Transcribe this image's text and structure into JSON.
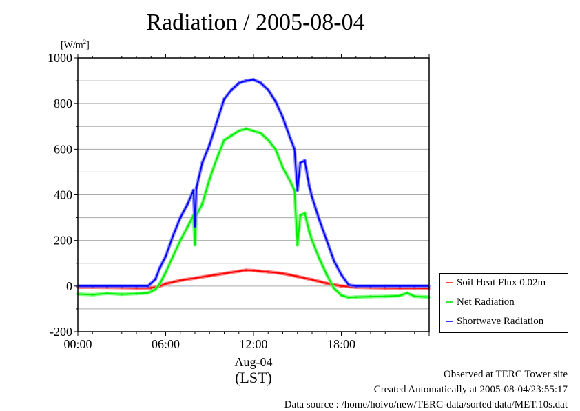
{
  "chart_data": {
    "type": "line",
    "title": "Radiation / 2005-08-04",
    "ylabel": "[W/m2]",
    "ylabel_unit_base": "[W/m",
    "ylabel_unit_exp": "2",
    "ylabel_unit_end": "]",
    "xlabel_date": "Aug-04",
    "xlabel_tz": "(LST)",
    "xlim_hours": [
      0,
      24
    ],
    "ylim": [
      -200,
      1000
    ],
    "yticks": [
      -200,
      0,
      200,
      400,
      600,
      800,
      1000
    ],
    "ytick_labels": [
      "-200",
      "0",
      "200",
      "400",
      "600",
      "800",
      "1000"
    ],
    "ygrid_step": 100,
    "xticks_hours": [
      0,
      6,
      12,
      18
    ],
    "xtick_labels": [
      "00:00",
      "06:00",
      "12:00",
      "18:00"
    ],
    "grid": true,
    "legend_position": "right-bottom",
    "series": [
      {
        "name": "Soil Heat Flux 0.02m",
        "color": "#ff0000",
        "x": [
          0,
          1,
          2,
          3,
          4,
          5,
          5.5,
          6,
          7,
          8,
          9,
          10,
          11,
          11.5,
          12,
          13,
          14,
          15,
          16,
          17,
          18,
          19,
          20,
          21,
          22,
          23,
          24
        ],
        "y": [
          -5,
          -5,
          -6,
          -7,
          -8,
          -8,
          -3,
          10,
          25,
          35,
          45,
          55,
          65,
          70,
          68,
          62,
          55,
          42,
          28,
          12,
          0,
          -5,
          -7,
          -8,
          -9,
          -9,
          -10
        ]
      },
      {
        "name": "Net Radiation",
        "color": "#00ee00",
        "x": [
          0,
          1,
          2,
          3,
          4,
          4.8,
          5.3,
          5.6,
          6,
          6.5,
          7,
          7.5,
          7.9,
          8.0,
          8.1,
          8.5,
          9,
          9.5,
          10,
          10.5,
          11,
          11.5,
          12,
          12.5,
          13,
          13.5,
          14,
          14.5,
          14.8,
          15.0,
          15.2,
          15.5,
          15.8,
          16,
          16.5,
          17,
          17.5,
          18,
          18.5,
          19,
          20,
          21,
          22,
          22.5,
          23,
          24
        ],
        "y": [
          -35,
          -38,
          -32,
          -36,
          -33,
          -30,
          -15,
          10,
          60,
          130,
          200,
          260,
          310,
          180,
          310,
          360,
          470,
          560,
          640,
          660,
          680,
          690,
          680,
          670,
          640,
          600,
          520,
          460,
          420,
          180,
          310,
          320,
          240,
          200,
          120,
          50,
          -10,
          -40,
          -50,
          -48,
          -46,
          -45,
          -42,
          -30,
          -45,
          -48
        ]
      },
      {
        "name": "Shortwave Radiation",
        "color": "#0000ff",
        "x": [
          0,
          1,
          2,
          3,
          4,
          4.8,
          5.3,
          5.6,
          6,
          6.5,
          7,
          7.5,
          7.9,
          8.0,
          8.1,
          8.5,
          9,
          9.5,
          10,
          10.5,
          11,
          11.5,
          12,
          12.5,
          13,
          13.5,
          14,
          14.5,
          14.8,
          15.0,
          15.2,
          15.5,
          15.8,
          16,
          16.5,
          17,
          17.5,
          18,
          18.5,
          19,
          20,
          21,
          22,
          23,
          24
        ],
        "y": [
          0,
          0,
          0,
          0,
          0,
          0,
          30,
          80,
          130,
          220,
          300,
          360,
          420,
          260,
          430,
          540,
          620,
          720,
          820,
          860,
          890,
          900,
          905,
          890,
          860,
          810,
          740,
          650,
          600,
          420,
          540,
          550,
          440,
          390,
          290,
          200,
          110,
          50,
          5,
          0,
          0,
          0,
          0,
          0,
          0
        ]
      }
    ]
  },
  "footer": {
    "observed": "Observed at TERC Tower site",
    "created": "Created Automatically at 2005-08-04/23:55:17",
    "source": "Data source : /home/hoivo/new/TERC-data/sorted  data/MET.10s.dat"
  }
}
